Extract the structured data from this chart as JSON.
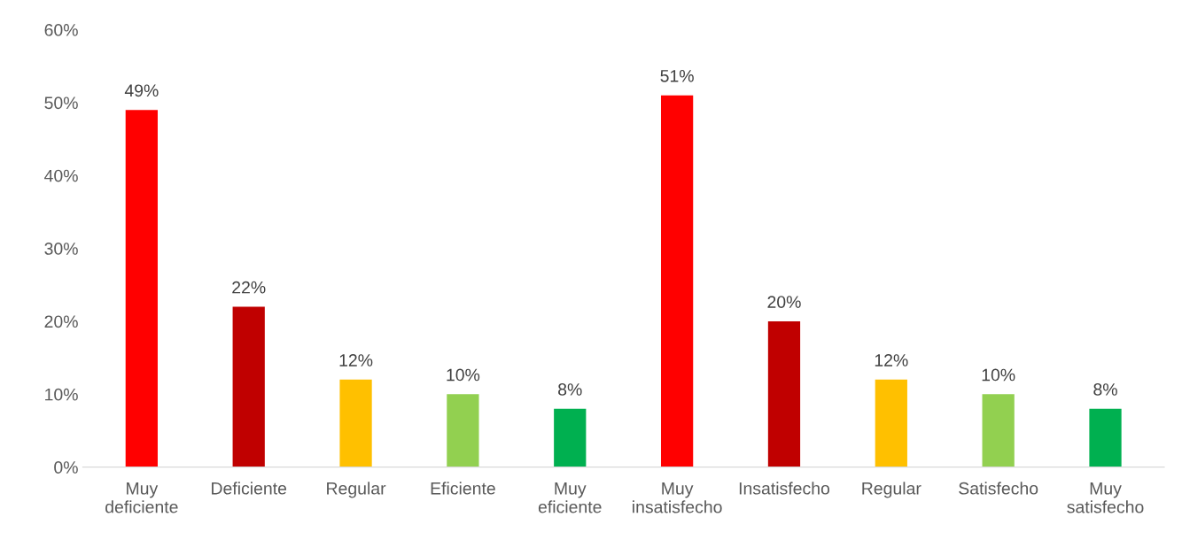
{
  "chart_data": {
    "type": "bar",
    "categories": [
      "Muy\ndeficiente",
      "Deficiente",
      "Regular",
      "Eficiente",
      "Muy\neficiente",
      "Muy\ninsatisfecho",
      "Insatisfecho",
      "Regular",
      "Satisfecho",
      "Muy\nsatisfecho"
    ],
    "values": [
      49,
      22,
      12,
      10,
      8,
      51,
      20,
      12,
      10,
      8
    ],
    "value_labels": [
      "49%",
      "22%",
      "12%",
      "10%",
      "8%",
      "51%",
      "20%",
      "12%",
      "10%",
      "8%"
    ],
    "colors": [
      "#ff0000",
      "#c00000",
      "#ffc000",
      "#92d050",
      "#00b050",
      "#ff0000",
      "#c00000",
      "#ffc000",
      "#92d050",
      "#00b050"
    ],
    "ylim": [
      0,
      60
    ],
    "yticks": [
      {
        "value": 0,
        "label": "0%"
      },
      {
        "value": 10,
        "label": "10%"
      },
      {
        "value": 20,
        "label": "20%"
      },
      {
        "value": 30,
        "label": "30%"
      },
      {
        "value": 40,
        "label": "40%"
      },
      {
        "value": 50,
        "label": "50%"
      },
      {
        "value": 60,
        "label": "60%"
      }
    ],
    "grid": false,
    "legend": false
  }
}
